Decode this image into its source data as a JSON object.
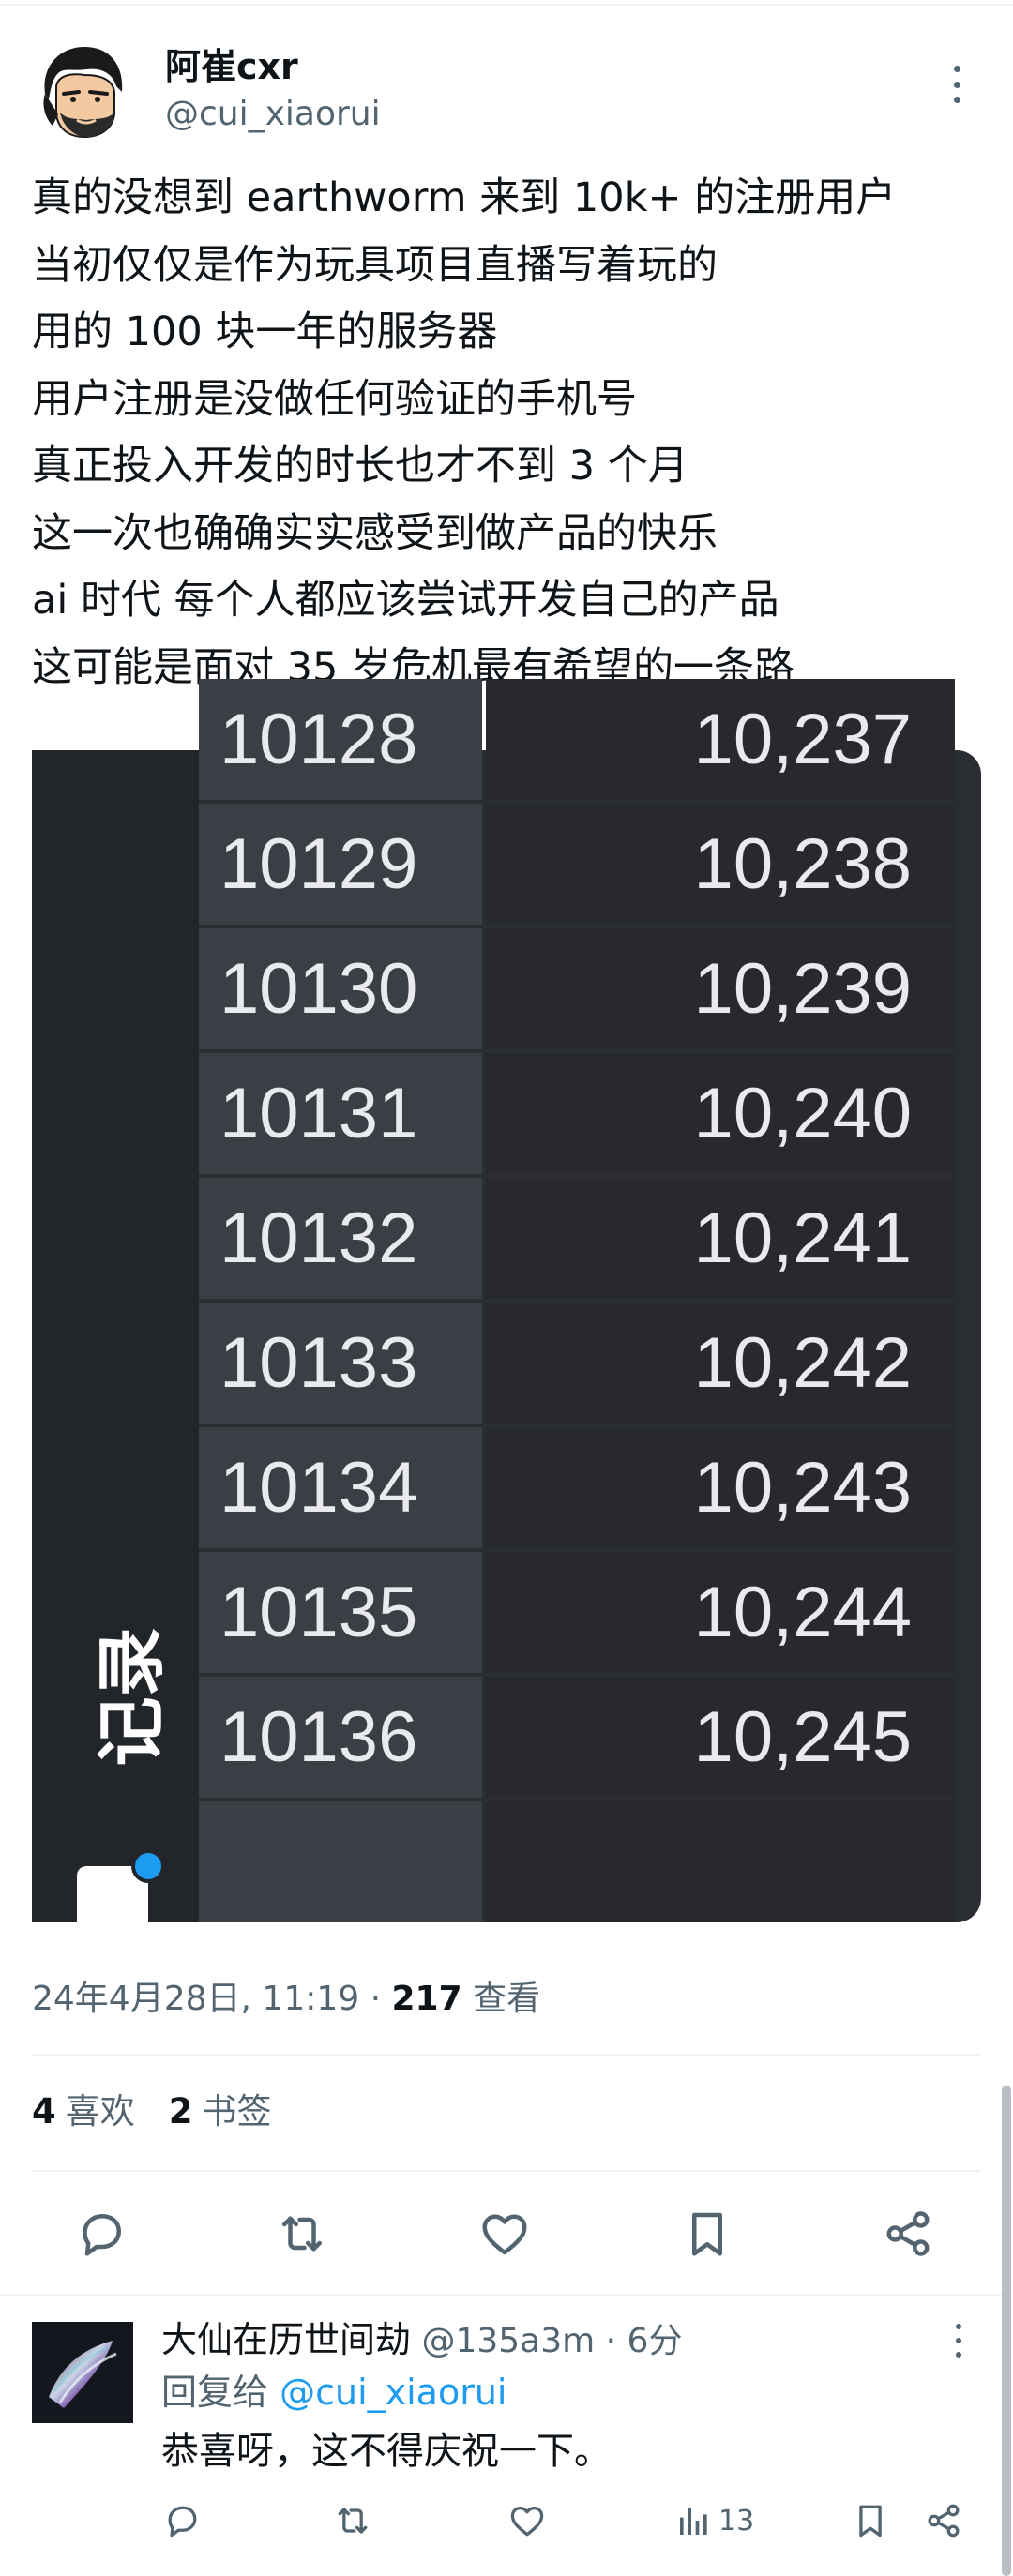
{
  "author": {
    "display_name": "阿崔cxr",
    "handle": "@cui_xiaorui"
  },
  "tweet": {
    "lines": [
      "真的没想到 earthworm 来到 10k+ 的注册用户",
      "当初仅仅是作为玩具项目直播写着玩的",
      "用的 100 块一年的服务器",
      "用户注册是没做任何验证的手机号",
      "真正投入开发的时长也才不到 3 个月",
      "这一次也确确实实感受到做产品的快乐",
      "ai 时代 每个人都应该尝试开发自己的产品",
      "这可能是面对 35 岁危机最有希望的一条路"
    ],
    "timestamp": "24年4月28日, 11:19 · ",
    "views_count": "217",
    "views_label": " 查看",
    "likes_count": "4",
    "likes_label": "喜欢",
    "bookmarks_count": "2",
    "bookmarks_label": "书签"
  },
  "media": {
    "rows": [
      [
        "10128",
        "10,237"
      ],
      [
        "10129",
        "10,238"
      ],
      [
        "10130",
        "10,239"
      ],
      [
        "10131",
        "10,240"
      ],
      [
        "10132",
        "10,241"
      ],
      [
        "10133",
        "10,242"
      ],
      [
        "10134",
        "10,243"
      ],
      [
        "10135",
        "10,244"
      ],
      [
        "10136",
        "10,245"
      ],
      [
        "",
        ""
      ]
    ],
    "side_label": "记录"
  },
  "actions": {
    "reply_icon": "reply-icon",
    "retweet_icon": "retweet-icon",
    "like_icon": "heart-icon",
    "bookmark_icon": "bookmark-icon",
    "share_icon": "share-icon"
  },
  "reply": {
    "display_name": "大仙在历世间劫",
    "meta": " @135a3m · 6分",
    "reply_to_prefix": "回复给 ",
    "reply_to_handle": "@cui_xiaorui",
    "text": "恭喜呀，这不得庆祝一下。",
    "views_count": "13"
  },
  "colors": {
    "accent": "#1d9bf0",
    "muted": "#536471",
    "text": "#0f1419",
    "divider": "#eff3f4"
  }
}
